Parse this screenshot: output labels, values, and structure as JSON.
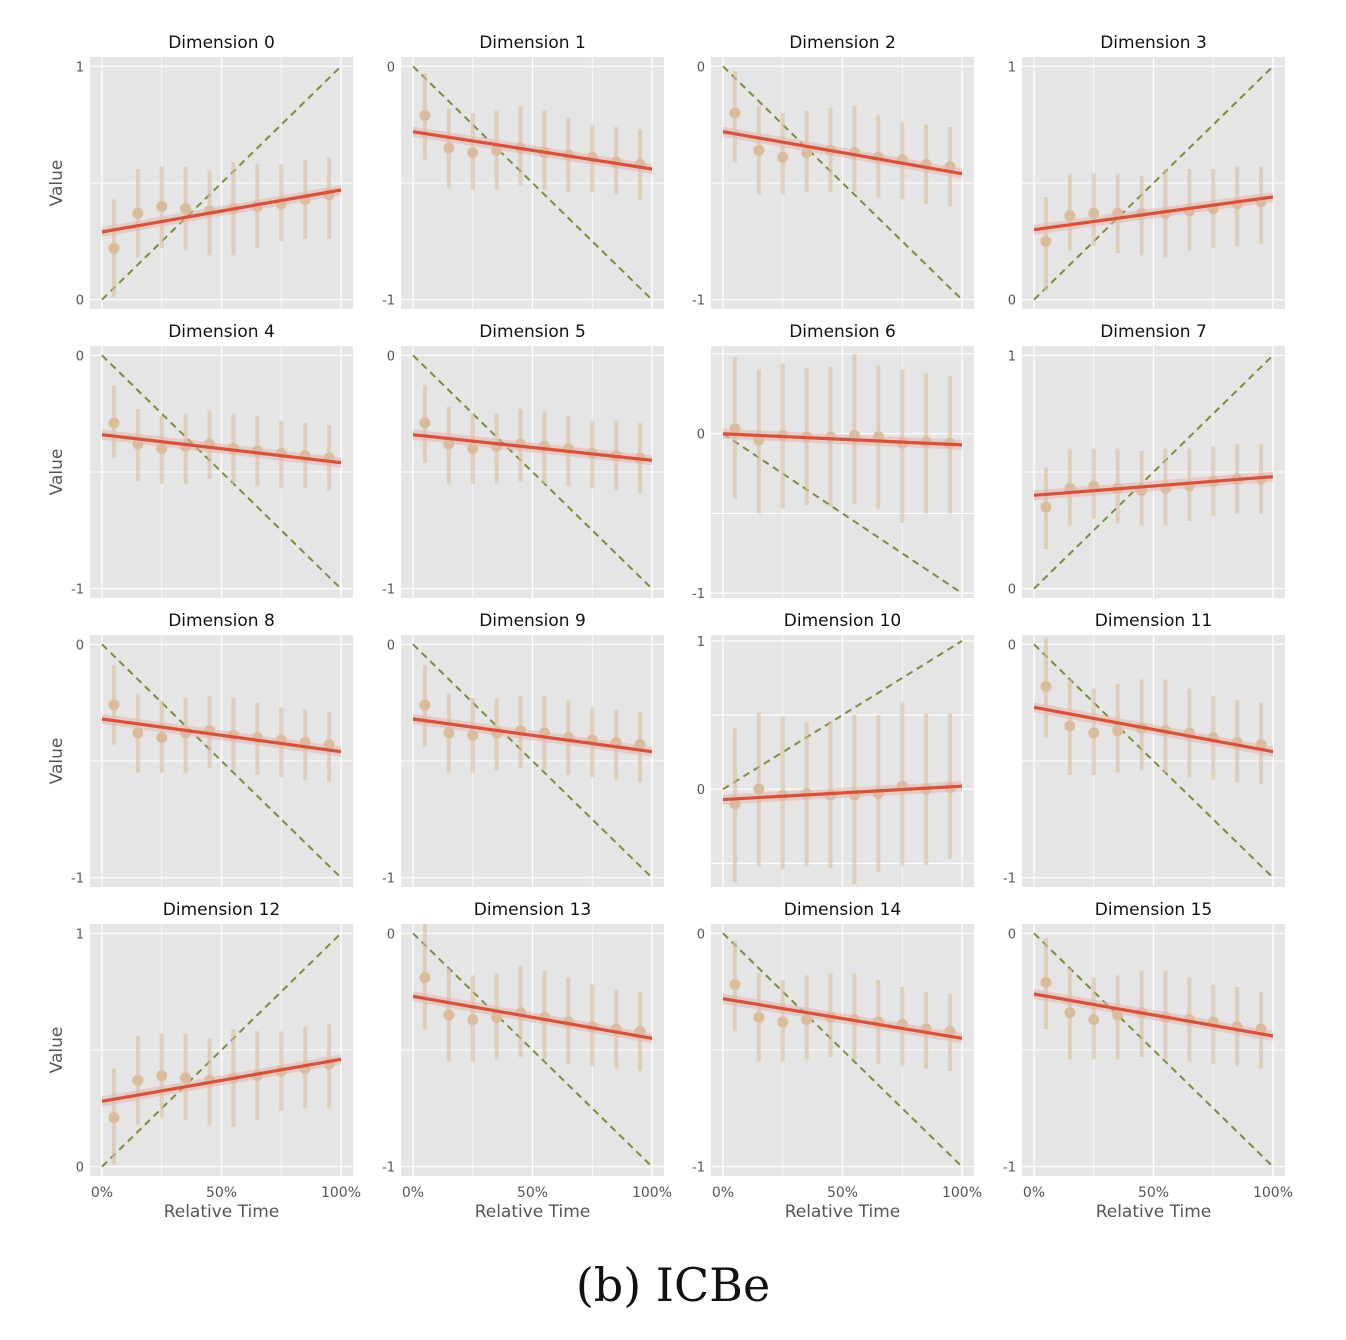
{
  "caption": "(b) ICBe",
  "colors": {
    "panel_bg": "#e5e5e5",
    "grid": "#ffffff",
    "fit_line": "#d35239",
    "fit_band": "#e8b4ac",
    "points": "#d9bc9c",
    "reference_line": "#7a8c3c",
    "axis_text": "#555555",
    "title_text": "#111111"
  },
  "x_label": "Relative Time",
  "y_label": "Value",
  "x_ticks": [
    "0%",
    "50%",
    "100%"
  ],
  "chart_data": [
    {
      "type": "scatter",
      "title": "Dimension 0",
      "xlabel": "",
      "ylabel": "Value",
      "ylim": [
        -0.04,
        1.04
      ],
      "yticks": [
        0,
        1
      ],
      "x": [
        5,
        15,
        25,
        35,
        45,
        55,
        65,
        75,
        85,
        95
      ],
      "y": [
        0.22,
        0.37,
        0.4,
        0.39,
        0.38,
        0.39,
        0.4,
        0.41,
        0.43,
        0.45
      ],
      "err_low": [
        0.01,
        0.18,
        0.22,
        0.21,
        0.19,
        0.19,
        0.22,
        0.25,
        0.26,
        0.26
      ],
      "err_high": [
        0.43,
        0.56,
        0.57,
        0.57,
        0.55,
        0.59,
        0.58,
        0.58,
        0.6,
        0.61
      ],
      "fit": [
        0.29,
        0.47
      ],
      "reference": [
        0,
        1
      ]
    },
    {
      "type": "scatter",
      "title": "Dimension 1",
      "xlabel": "",
      "ylabel": "",
      "ylim": [
        -1.04,
        0.04
      ],
      "yticks": [
        0,
        -1
      ],
      "x": [
        5,
        15,
        25,
        35,
        45,
        55,
        65,
        75,
        85,
        95
      ],
      "y": [
        -0.21,
        -0.35,
        -0.37,
        -0.36,
        -0.35,
        -0.37,
        -0.38,
        -0.39,
        -0.41,
        -0.42
      ],
      "err_low": [
        -0.4,
        -0.52,
        -0.53,
        -0.53,
        -0.51,
        -0.53,
        -0.54,
        -0.54,
        -0.55,
        -0.57
      ],
      "err_high": [
        -0.03,
        -0.18,
        -0.2,
        -0.19,
        -0.17,
        -0.19,
        -0.22,
        -0.25,
        -0.26,
        -0.27
      ],
      "fit": [
        -0.28,
        -0.44
      ],
      "reference": [
        0,
        -1
      ]
    },
    {
      "type": "scatter",
      "title": "Dimension 2",
      "xlabel": "",
      "ylabel": "",
      "ylim": [
        -1.04,
        0.04
      ],
      "yticks": [
        0,
        -1
      ],
      "x": [
        5,
        15,
        25,
        35,
        45,
        55,
        65,
        75,
        85,
        95
      ],
      "y": [
        -0.2,
        -0.36,
        -0.39,
        -0.37,
        -0.36,
        -0.37,
        -0.39,
        -0.4,
        -0.42,
        -0.43
      ],
      "err_low": [
        -0.41,
        -0.55,
        -0.55,
        -0.54,
        -0.54,
        -0.54,
        -0.56,
        -0.57,
        -0.59,
        -0.6
      ],
      "err_high": [
        -0.02,
        -0.17,
        -0.2,
        -0.19,
        -0.18,
        -0.17,
        -0.21,
        -0.24,
        -0.25,
        -0.26
      ],
      "fit": [
        -0.28,
        -0.46
      ],
      "reference": [
        0,
        -1
      ]
    },
    {
      "type": "scatter",
      "title": "Dimension 3",
      "xlabel": "",
      "ylabel": "",
      "ylim": [
        -0.04,
        1.04
      ],
      "yticks": [
        0,
        1
      ],
      "x": [
        5,
        15,
        25,
        35,
        45,
        55,
        65,
        75,
        85,
        95
      ],
      "y": [
        0.25,
        0.36,
        0.37,
        0.37,
        0.37,
        0.37,
        0.38,
        0.39,
        0.41,
        0.42
      ],
      "err_low": [
        0.04,
        0.21,
        0.23,
        0.2,
        0.19,
        0.18,
        0.21,
        0.22,
        0.23,
        0.24
      ],
      "err_high": [
        0.44,
        0.54,
        0.54,
        0.54,
        0.53,
        0.56,
        0.56,
        0.56,
        0.57,
        0.57
      ],
      "fit": [
        0.3,
        0.44
      ],
      "reference": [
        0,
        1
      ]
    },
    {
      "type": "scatter",
      "title": "Dimension 4",
      "xlabel": "",
      "ylabel": "Value",
      "ylim": [
        -1.04,
        0.04
      ],
      "yticks": [
        0,
        -1
      ],
      "x": [
        5,
        15,
        25,
        35,
        45,
        55,
        65,
        75,
        85,
        95
      ],
      "y": [
        -0.29,
        -0.38,
        -0.4,
        -0.39,
        -0.38,
        -0.4,
        -0.41,
        -0.42,
        -0.43,
        -0.44
      ],
      "err_low": [
        -0.44,
        -0.54,
        -0.55,
        -0.55,
        -0.53,
        -0.55,
        -0.56,
        -0.57,
        -0.57,
        -0.58
      ],
      "err_high": [
        -0.13,
        -0.23,
        -0.26,
        -0.25,
        -0.24,
        -0.25,
        -0.26,
        -0.28,
        -0.29,
        -0.3
      ],
      "fit": [
        -0.34,
        -0.46
      ],
      "reference": [
        0,
        -1
      ]
    },
    {
      "type": "scatter",
      "title": "Dimension 5",
      "xlabel": "",
      "ylabel": "",
      "ylim": [
        -1.04,
        0.04
      ],
      "yticks": [
        0,
        -1
      ],
      "x": [
        5,
        15,
        25,
        35,
        45,
        55,
        65,
        75,
        85,
        95
      ],
      "y": [
        -0.29,
        -0.38,
        -0.4,
        -0.39,
        -0.38,
        -0.39,
        -0.4,
        -0.42,
        -0.43,
        -0.44
      ],
      "err_low": [
        -0.46,
        -0.55,
        -0.55,
        -0.55,
        -0.54,
        -0.55,
        -0.56,
        -0.57,
        -0.58,
        -0.59
      ],
      "err_high": [
        -0.13,
        -0.22,
        -0.25,
        -0.25,
        -0.23,
        -0.24,
        -0.26,
        -0.28,
        -0.28,
        -0.29
      ],
      "fit": [
        -0.34,
        -0.45
      ],
      "reference": [
        0,
        -1
      ]
    },
    {
      "type": "scatter",
      "title": "Dimension 6",
      "xlabel": "",
      "ylabel": "",
      "ylim": [
        -1.03,
        0.55
      ],
      "yticks": [
        0,
        -1
      ],
      "x": [
        5,
        15,
        25,
        35,
        45,
        55,
        65,
        75,
        85,
        95
      ],
      "y": [
        0.03,
        -0.04,
        -0.01,
        -0.02,
        -0.02,
        -0.01,
        -0.02,
        -0.06,
        -0.05,
        -0.06
      ],
      "err_low": [
        -0.41,
        -0.5,
        -0.47,
        -0.45,
        -0.46,
        -0.44,
        -0.47,
        -0.56,
        -0.5,
        -0.5
      ],
      "err_high": [
        0.48,
        0.4,
        0.44,
        0.41,
        0.42,
        0.5,
        0.43,
        0.4,
        0.38,
        0.36
      ],
      "fit": [
        0.0,
        -0.07
      ],
      "reference": [
        0,
        -1
      ]
    },
    {
      "type": "scatter",
      "title": "Dimension 7",
      "xlabel": "",
      "ylabel": "",
      "ylim": [
        -0.04,
        1.04
      ],
      "yticks": [
        0,
        1
      ],
      "x": [
        5,
        15,
        25,
        35,
        45,
        55,
        65,
        75,
        85,
        95
      ],
      "y": [
        0.35,
        0.43,
        0.44,
        0.43,
        0.42,
        0.43,
        0.44,
        0.46,
        0.47,
        0.47
      ],
      "err_low": [
        0.17,
        0.27,
        0.3,
        0.28,
        0.27,
        0.27,
        0.29,
        0.31,
        0.32,
        0.32
      ],
      "err_high": [
        0.52,
        0.6,
        0.6,
        0.6,
        0.59,
        0.6,
        0.6,
        0.61,
        0.62,
        0.62
      ],
      "fit": [
        0.4,
        0.48
      ],
      "reference": [
        0,
        1
      ]
    },
    {
      "type": "scatter",
      "title": "Dimension 8",
      "xlabel": "",
      "ylabel": "Value",
      "ylim": [
        -1.04,
        0.04
      ],
      "yticks": [
        0,
        -1
      ],
      "x": [
        5,
        15,
        25,
        35,
        45,
        55,
        65,
        75,
        85,
        95
      ],
      "y": [
        -0.26,
        -0.38,
        -0.4,
        -0.38,
        -0.37,
        -0.39,
        -0.4,
        -0.41,
        -0.42,
        -0.43
      ],
      "err_low": [
        -0.43,
        -0.55,
        -0.55,
        -0.55,
        -0.53,
        -0.54,
        -0.56,
        -0.57,
        -0.58,
        -0.59
      ],
      "err_high": [
        -0.09,
        -0.21,
        -0.24,
        -0.23,
        -0.22,
        -0.23,
        -0.25,
        -0.27,
        -0.28,
        -0.29
      ],
      "fit": [
        -0.32,
        -0.46
      ],
      "reference": [
        0,
        -1
      ]
    },
    {
      "type": "scatter",
      "title": "Dimension 9",
      "xlabel": "",
      "ylabel": "",
      "ylim": [
        -1.04,
        0.04
      ],
      "yticks": [
        0,
        -1
      ],
      "x": [
        5,
        15,
        25,
        35,
        45,
        55,
        65,
        75,
        85,
        95
      ],
      "y": [
        -0.26,
        -0.38,
        -0.39,
        -0.38,
        -0.37,
        -0.38,
        -0.4,
        -0.41,
        -0.42,
        -0.43
      ],
      "err_low": [
        -0.44,
        -0.55,
        -0.55,
        -0.54,
        -0.53,
        -0.54,
        -0.56,
        -0.57,
        -0.58,
        -0.59
      ],
      "err_high": [
        -0.09,
        -0.21,
        -0.23,
        -0.23,
        -0.22,
        -0.22,
        -0.24,
        -0.27,
        -0.28,
        -0.29
      ],
      "fit": [
        -0.32,
        -0.46
      ],
      "reference": [
        0,
        -1
      ]
    },
    {
      "type": "scatter",
      "title": "Dimension 10",
      "xlabel": "",
      "ylabel": "",
      "ylim": [
        -0.66,
        1.04
      ],
      "yticks": [
        0,
        1
      ],
      "x": [
        5,
        15,
        25,
        35,
        45,
        55,
        65,
        75,
        85,
        95
      ],
      "y": [
        -0.1,
        0.0,
        -0.04,
        -0.03,
        -0.04,
        -0.04,
        -0.03,
        0.02,
        0.0,
        0.01
      ],
      "err_low": [
        -0.63,
        -0.52,
        -0.54,
        -0.52,
        -0.53,
        -0.64,
        -0.56,
        -0.52,
        -0.51,
        -0.47
      ],
      "err_high": [
        0.41,
        0.52,
        0.49,
        0.45,
        0.46,
        0.5,
        0.5,
        0.59,
        0.51,
        0.51
      ],
      "fit": [
        -0.07,
        0.02
      ],
      "reference": [
        0,
        1
      ]
    },
    {
      "type": "scatter",
      "title": "Dimension 11",
      "xlabel": "",
      "ylabel": "",
      "ylim": [
        -1.04,
        0.04
      ],
      "yticks": [
        0,
        -1
      ],
      "x": [
        5,
        15,
        25,
        35,
        45,
        55,
        65,
        75,
        85,
        95
      ],
      "y": [
        -0.18,
        -0.35,
        -0.38,
        -0.37,
        -0.36,
        -0.37,
        -0.38,
        -0.4,
        -0.42,
        -0.43
      ],
      "err_low": [
        -0.4,
        -0.56,
        -0.56,
        -0.55,
        -0.54,
        -0.55,
        -0.57,
        -0.58,
        -0.59,
        -0.6
      ],
      "err_high": [
        0.03,
        -0.15,
        -0.19,
        -0.17,
        -0.15,
        -0.15,
        -0.19,
        -0.22,
        -0.24,
        -0.25
      ],
      "fit": [
        -0.27,
        -0.46
      ],
      "reference": [
        0,
        -1
      ]
    },
    {
      "type": "scatter",
      "title": "Dimension 12",
      "xlabel": "",
      "ylabel": "Value",
      "ylim": [
        -0.04,
        1.04
      ],
      "yticks": [
        0,
        1
      ],
      "x": [
        5,
        15,
        25,
        35,
        45,
        55,
        65,
        75,
        85,
        95
      ],
      "y": [
        0.21,
        0.37,
        0.39,
        0.38,
        0.37,
        0.38,
        0.39,
        0.41,
        0.42,
        0.44
      ],
      "err_low": [
        0.01,
        0.18,
        0.21,
        0.2,
        0.18,
        0.17,
        0.2,
        0.24,
        0.25,
        0.25
      ],
      "err_high": [
        0.42,
        0.56,
        0.57,
        0.57,
        0.55,
        0.59,
        0.58,
        0.58,
        0.6,
        0.61
      ],
      "fit": [
        0.28,
        0.46
      ],
      "reference": [
        0,
        1
      ]
    },
    {
      "type": "scatter",
      "title": "Dimension 13",
      "xlabel": "",
      "ylabel": "",
      "ylim": [
        -1.04,
        0.04
      ],
      "yticks": [
        0,
        -1
      ],
      "x": [
        5,
        15,
        25,
        35,
        45,
        55,
        65,
        75,
        85,
        95
      ],
      "y": [
        -0.19,
        -0.35,
        -0.37,
        -0.36,
        -0.34,
        -0.36,
        -0.38,
        -0.4,
        -0.41,
        -0.42
      ],
      "err_low": [
        -0.41,
        -0.55,
        -0.55,
        -0.54,
        -0.53,
        -0.54,
        -0.56,
        -0.57,
        -0.58,
        -0.59
      ],
      "err_high": [
        0.04,
        -0.15,
        -0.18,
        -0.17,
        -0.14,
        -0.16,
        -0.19,
        -0.22,
        -0.24,
        -0.25
      ],
      "fit": [
        -0.27,
        -0.45
      ],
      "reference": [
        0,
        -1
      ]
    },
    {
      "type": "scatter",
      "title": "Dimension 14",
      "xlabel": "",
      "ylabel": "",
      "ylim": [
        -1.04,
        0.04
      ],
      "yticks": [
        0,
        -1
      ],
      "x": [
        5,
        15,
        25,
        35,
        45,
        55,
        65,
        75,
        85,
        95
      ],
      "y": [
        -0.22,
        -0.36,
        -0.38,
        -0.37,
        -0.36,
        -0.37,
        -0.38,
        -0.39,
        -0.41,
        -0.42
      ],
      "err_low": [
        -0.42,
        -0.55,
        -0.55,
        -0.54,
        -0.53,
        -0.54,
        -0.56,
        -0.57,
        -0.58,
        -0.59
      ],
      "err_high": [
        -0.03,
        -0.17,
        -0.2,
        -0.18,
        -0.17,
        -0.17,
        -0.2,
        -0.23,
        -0.25,
        -0.26
      ],
      "fit": [
        -0.28,
        -0.45
      ],
      "reference": [
        0,
        -1
      ]
    },
    {
      "type": "scatter",
      "title": "Dimension 15",
      "xlabel": "",
      "ylabel": "",
      "ylim": [
        -1.04,
        0.04
      ],
      "yticks": [
        0,
        -1
      ],
      "x": [
        5,
        15,
        25,
        35,
        45,
        55,
        65,
        75,
        85,
        95
      ],
      "y": [
        -0.21,
        -0.34,
        -0.37,
        -0.35,
        -0.34,
        -0.36,
        -0.37,
        -0.38,
        -0.4,
        -0.41
      ],
      "err_low": [
        -0.41,
        -0.54,
        -0.54,
        -0.54,
        -0.53,
        -0.54,
        -0.55,
        -0.56,
        -0.57,
        -0.58
      ],
      "err_high": [
        -0.02,
        -0.15,
        -0.19,
        -0.18,
        -0.16,
        -0.16,
        -0.19,
        -0.22,
        -0.23,
        -0.25
      ],
      "fit": [
        -0.26,
        -0.44
      ],
      "reference": [
        0,
        -1
      ]
    }
  ]
}
